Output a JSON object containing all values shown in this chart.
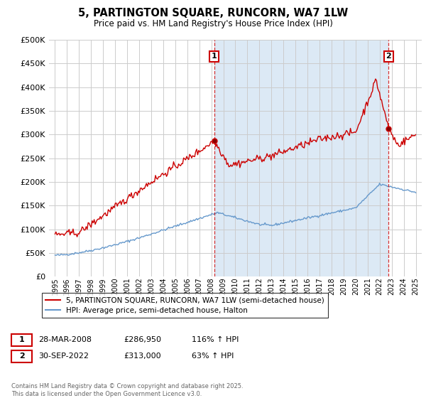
{
  "title": "5, PARTINGTON SQUARE, RUNCORN, WA7 1LW",
  "subtitle": "Price paid vs. HM Land Registry's House Price Index (HPI)",
  "legend_label_red": "5, PARTINGTON SQUARE, RUNCORN, WA7 1LW (semi-detached house)",
  "legend_label_blue": "HPI: Average price, semi-detached house, Halton",
  "annotation1_label": "1",
  "annotation1_date": "28-MAR-2008",
  "annotation1_price": "£286,950",
  "annotation1_hpi": "116% ↑ HPI",
  "annotation1_year": 2008.23,
  "annotation1_value": 286950,
  "annotation2_label": "2",
  "annotation2_date": "30-SEP-2022",
  "annotation2_price": "£313,000",
  "annotation2_hpi": "63% ↑ HPI",
  "annotation2_year": 2022.75,
  "annotation2_value": 313000,
  "footer": "Contains HM Land Registry data © Crown copyright and database right 2025.\nThis data is licensed under the Open Government Licence v3.0.",
  "ylim": [
    0,
    500000
  ],
  "yticks": [
    0,
    50000,
    100000,
    150000,
    200000,
    250000,
    300000,
    350000,
    400000,
    450000,
    500000
  ],
  "red_color": "#cc0000",
  "blue_color": "#6699cc",
  "shade_color": "#dce9f5",
  "dashed_color": "#cc0000",
  "grid_color": "#cccccc",
  "background_color": "#ffffff",
  "plot_bg_color": "#ffffff",
  "xmin": 1994.5,
  "xmax": 2025.5
}
